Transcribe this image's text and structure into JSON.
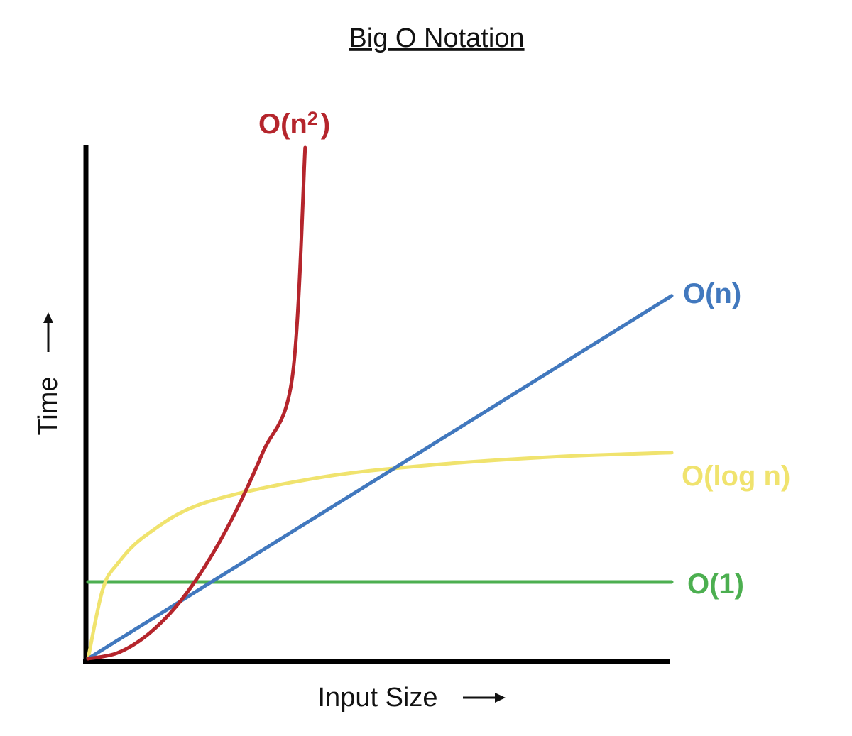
{
  "chart_data": {
    "type": "line",
    "title": "Big O Notation",
    "xlabel": "Input Size",
    "ylabel": "Time",
    "x_arrow": "⟶",
    "y_arrow": "⟶",
    "xlim": [
      0,
      10
    ],
    "ylim": [
      0,
      10
    ],
    "grid": false,
    "legend": "inline-labels-at-line-ends",
    "series": [
      {
        "key": "n2",
        "name": "O(n²)",
        "name_base": "O(n",
        "name_sup": "2",
        "name_close": ")",
        "color": "#b5252c",
        "function": "quadratic",
        "x": [
          0,
          0.5,
          1,
          1.5,
          2,
          2.5,
          3,
          3.5,
          3.72
        ],
        "y": [
          0,
          0.11,
          0.45,
          1.01,
          1.8,
          2.81,
          4.05,
          5.51,
          10
        ]
      },
      {
        "key": "n",
        "name": "O(n)",
        "color": "#4178be",
        "function": "linear",
        "x": [
          0,
          2,
          4,
          6,
          8,
          10
        ],
        "y": [
          0,
          1.42,
          2.84,
          4.26,
          5.68,
          7.1
        ]
      },
      {
        "key": "logn",
        "name": "O(log n)",
        "color": "#f0e36e",
        "function": "logarithmic",
        "x": [
          0,
          0.25,
          0.5,
          1,
          2,
          4,
          6,
          8,
          10
        ],
        "y": [
          0,
          1.35,
          1.85,
          2.42,
          3.05,
          3.55,
          3.8,
          3.95,
          4.03
        ]
      },
      {
        "key": "const",
        "name": "O(1)",
        "color": "#4caf50",
        "function": "constant",
        "x": [
          0,
          10
        ],
        "y": [
          1.5,
          1.5
        ]
      }
    ]
  }
}
